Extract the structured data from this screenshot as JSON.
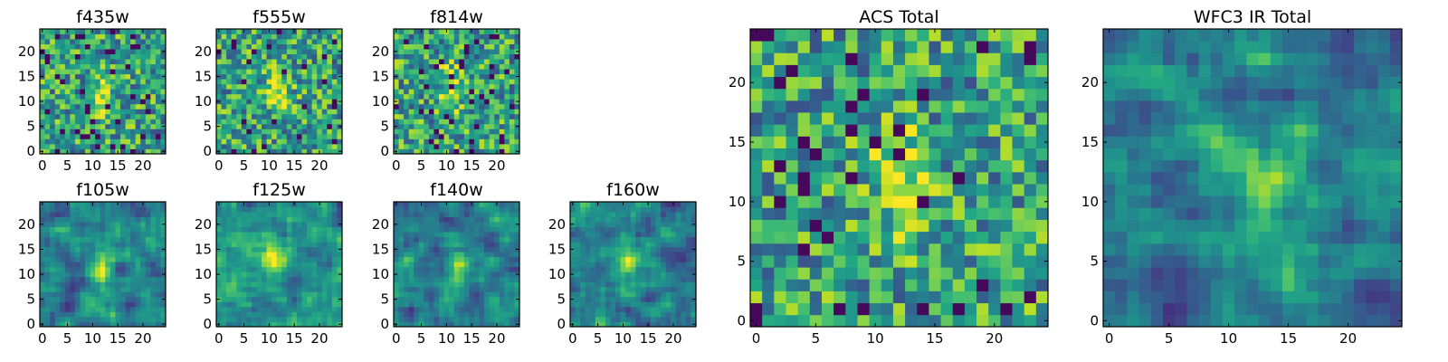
{
  "figure": {
    "description_free": true
  },
  "chart_data": [
    {
      "type": "heatmap",
      "id": "f435w",
      "title": "f435w",
      "xlim": [
        0,
        24
      ],
      "ylim": [
        0,
        24
      ],
      "grid_size": 25,
      "xticks": [
        0,
        5,
        10,
        15,
        20
      ],
      "yticks": [
        0,
        5,
        10,
        15,
        20
      ],
      "colormap": "viridis",
      "pattern": "noise",
      "peak": [
        12,
        11
      ],
      "seed": 11
    },
    {
      "type": "heatmap",
      "id": "f555w",
      "title": "f555w",
      "xlim": [
        0,
        24
      ],
      "ylim": [
        0,
        24
      ],
      "grid_size": 25,
      "xticks": [
        0,
        5,
        10,
        15,
        20
      ],
      "yticks": [
        0,
        5,
        10,
        15,
        20
      ],
      "colormap": "viridis",
      "pattern": "noise",
      "peak": [
        12,
        12
      ],
      "seed": 23
    },
    {
      "type": "heatmap",
      "id": "f814w",
      "title": "f814w",
      "xlim": [
        0,
        24
      ],
      "ylim": [
        0,
        24
      ],
      "grid_size": 25,
      "xticks": [
        0,
        5,
        10,
        15,
        20
      ],
      "yticks": [
        0,
        5,
        10,
        15,
        20
      ],
      "colormap": "viridis",
      "pattern": "noise",
      "peak": [
        11,
        13
      ],
      "seed": 37
    },
    {
      "type": "heatmap",
      "id": "f105w",
      "title": "f105w",
      "xlim": [
        0,
        24
      ],
      "ylim": [
        0,
        24
      ],
      "grid_size": 25,
      "xticks": [
        0,
        5,
        10,
        15,
        20
      ],
      "yticks": [
        0,
        5,
        10,
        15,
        20
      ],
      "colormap": "viridis",
      "pattern": "smooth",
      "peak": [
        12,
        11
      ],
      "seed": 41
    },
    {
      "type": "heatmap",
      "id": "f125w",
      "title": "f125w",
      "xlim": [
        0,
        24
      ],
      "ylim": [
        0,
        24
      ],
      "grid_size": 25,
      "xticks": [
        0,
        5,
        10,
        15,
        20
      ],
      "yticks": [
        0,
        5,
        10,
        15,
        20
      ],
      "colormap": "viridis",
      "pattern": "smooth",
      "peak": [
        11,
        13
      ],
      "seed": 53
    },
    {
      "type": "heatmap",
      "id": "f140w",
      "title": "f140w",
      "xlim": [
        0,
        24
      ],
      "ylim": [
        0,
        24
      ],
      "grid_size": 25,
      "xticks": [
        0,
        5,
        10,
        15,
        20
      ],
      "yticks": [
        0,
        5,
        10,
        15,
        20
      ],
      "colormap": "viridis",
      "pattern": "smooth",
      "peak": [
        12,
        10
      ],
      "seed": 67
    },
    {
      "type": "heatmap",
      "id": "f160w",
      "title": "f160w",
      "xlim": [
        0,
        24
      ],
      "ylim": [
        0,
        24
      ],
      "grid_size": 25,
      "xticks": [
        0,
        5,
        10,
        15,
        20
      ],
      "yticks": [
        0,
        5,
        10,
        15,
        20
      ],
      "colormap": "viridis",
      "pattern": "smooth",
      "peak": [
        11,
        12
      ],
      "seed": 79
    },
    {
      "type": "heatmap",
      "id": "acs-total",
      "title": "ACS Total",
      "xlim": [
        0,
        24
      ],
      "ylim": [
        0,
        24
      ],
      "grid_size": 25,
      "xticks": [
        0,
        5,
        10,
        15,
        20
      ],
      "yticks": [
        0,
        5,
        10,
        15,
        20
      ],
      "colormap": "viridis",
      "pattern": "noise",
      "peak": [
        12,
        12
      ],
      "seed": 83
    },
    {
      "type": "heatmap",
      "id": "wfc3-ir-total",
      "title": "WFC3 IR Total",
      "xlim": [
        0,
        24
      ],
      "ylim": [
        0,
        24
      ],
      "grid_size": 25,
      "xticks": [
        0,
        5,
        10,
        15,
        20
      ],
      "yticks": [
        0,
        5,
        10,
        15,
        20
      ],
      "colormap": "viridis",
      "pattern": "smooth",
      "peak": [
        12,
        12
      ],
      "seed": 97
    }
  ]
}
